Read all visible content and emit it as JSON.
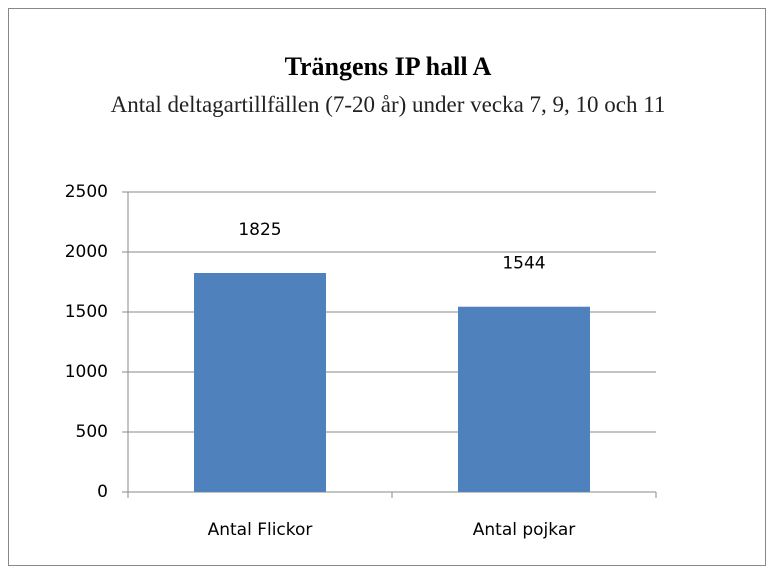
{
  "chart_data": {
    "type": "bar",
    "title": "Trängens IP hall A",
    "subtitle": "Antal deltagartillfällen (7-20 år) under vecka 7, 9, 10 och 11",
    "categories": [
      "Antal Flickor",
      "Antal pojkar"
    ],
    "values": [
      1825,
      1544
    ],
    "color": "#4f81bd",
    "ylim": [
      0,
      2500
    ],
    "yticks": [
      0,
      500,
      1000,
      1500,
      2000,
      2500
    ],
    "grid": true
  }
}
